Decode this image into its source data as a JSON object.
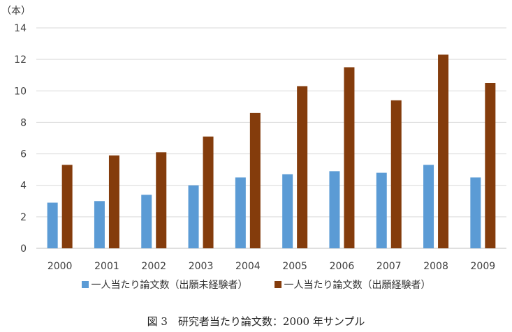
{
  "chart_data": {
    "type": "bar",
    "unit_label": "（本）",
    "categories": [
      "2000",
      "2001",
      "2002",
      "2003",
      "2004",
      "2005",
      "2006",
      "2007",
      "2008",
      "2009"
    ],
    "series": [
      {
        "name": "一人当たり論文数（出願未経験者）",
        "color": "#5b9bd5",
        "values": [
          2.9,
          3.0,
          3.4,
          4.0,
          4.5,
          4.7,
          4.9,
          4.8,
          5.3,
          4.5
        ]
      },
      {
        "name": "一人当たり論文数（出願経験者）",
        "color": "#843c0c",
        "values": [
          5.3,
          5.9,
          6.1,
          7.1,
          8.6,
          10.3,
          11.5,
          9.4,
          12.3,
          10.5
        ]
      }
    ],
    "ylim": [
      0,
      14
    ],
    "yticks": [
      "0",
      "2",
      "4",
      "6",
      "8",
      "10",
      "12",
      "14"
    ],
    "grid": true,
    "legend_position": "bottom"
  },
  "caption": "図 3　研究者当たり論文数：2000 年サンプル"
}
